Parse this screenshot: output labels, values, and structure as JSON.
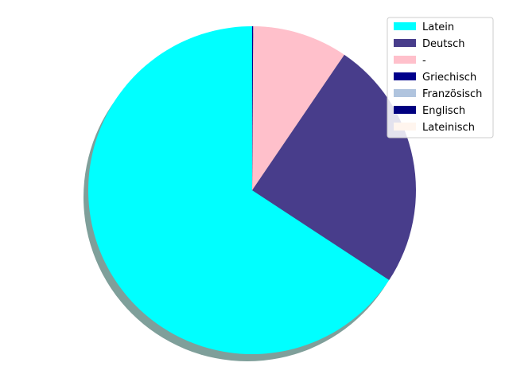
{
  "chart_data": {
    "type": "pie",
    "categories": [
      "Latein",
      "Deutsch",
      "-",
      "Griechisch",
      "Französisch",
      "Englisch",
      "Lateinisch"
    ],
    "values": [
      65.7,
      24.7,
      9.4,
      0.1,
      0.0,
      0.0,
      0.0
    ],
    "colors": [
      "#00ffff",
      "#483d8b",
      "#ffc0cb",
      "#00008b",
      "#b0c4de",
      "#000080",
      "#fff5ee"
    ],
    "start_angle_deg": 90,
    "direction": "counterclockwise",
    "shadow": true,
    "shadow_color": "#7f9f9a",
    "legend": "top-right"
  }
}
